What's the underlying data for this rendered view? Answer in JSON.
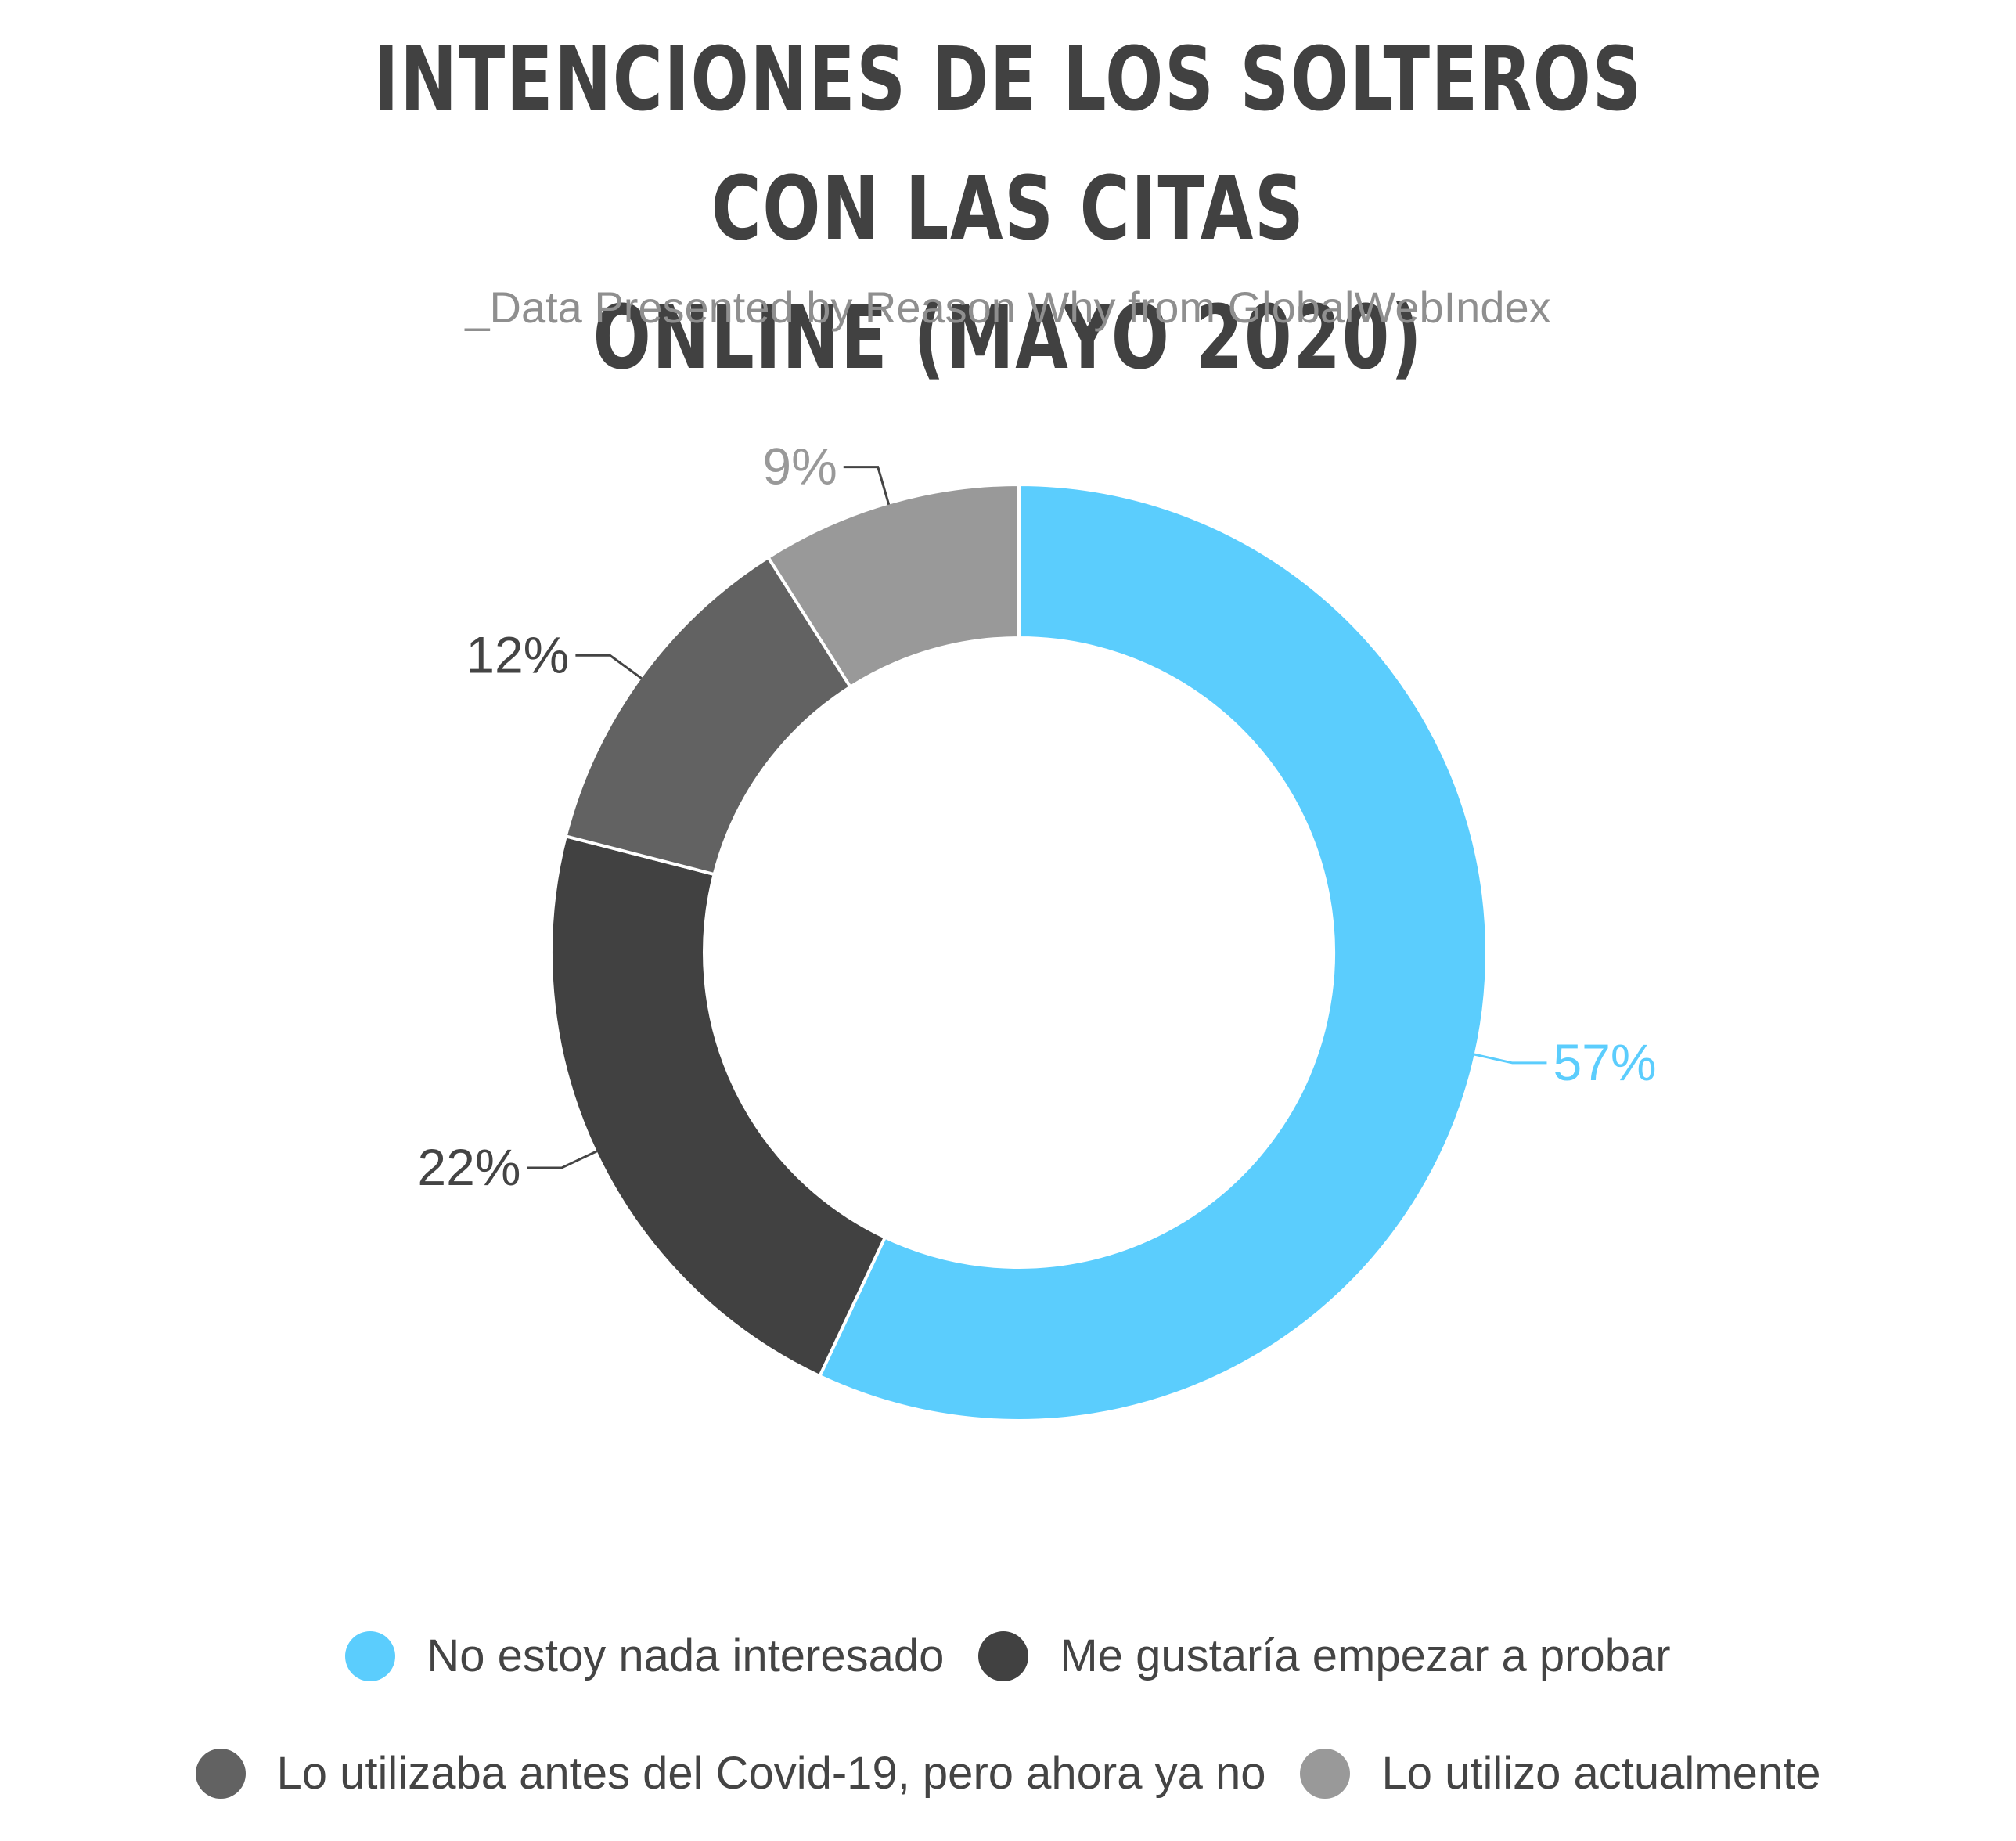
{
  "chart_data": {
    "type": "pie",
    "donut": true,
    "title": "INTENCIONES DE LOS SOLTEROS CON LAS CITAS ONLINE (MAYO 2020)",
    "title_lines": [
      "INTENCIONES DE LOS SOLTEROS CON LAS CITAS",
      "ONLINE (MAYO 2020)"
    ],
    "subtitle": "_Data Presented by Reason Why from GlobalWebIndex",
    "unit": "%",
    "legend_position": "bottom",
    "slices": [
      {
        "label": "No estoy nada interesado",
        "value": 57,
        "display": "57%",
        "color": "#5bcdfd"
      },
      {
        "label": "Me gustaría empezar a probar",
        "value": 22,
        "display": "22%",
        "color": "#414141"
      },
      {
        "label": "Lo utilizaba antes del Covid-19, pero ahora ya no",
        "value": 12,
        "display": "12%",
        "color": "#626262"
      },
      {
        "label": "Lo utilizo actualmente",
        "value": 9,
        "display": "9%",
        "color": "#999999"
      }
    ]
  }
}
